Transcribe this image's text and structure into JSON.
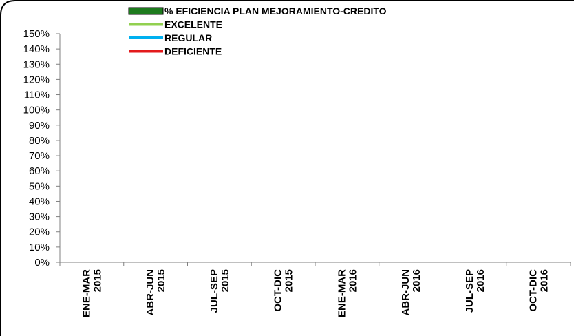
{
  "chart_data": {
    "type": "bar",
    "title": "",
    "xlabel": "",
    "ylabel": "",
    "ylim": [
      0,
      1.5
    ],
    "y_format": "percent",
    "y_ticks": [
      "0%",
      "10%",
      "20%",
      "30%",
      "40%",
      "50%",
      "60%",
      "70%",
      "80%",
      "90%",
      "100%",
      "110%",
      "120%",
      "130%",
      "140%",
      "150%"
    ],
    "categories": [
      [
        "ENE-MAR",
        "2015"
      ],
      [
        "ABR-JUN",
        "2015"
      ],
      [
        "JUL-SEP",
        "2015"
      ],
      [
        "OCT-DIC",
        "2015"
      ],
      [
        "ENE-MAR",
        "2016"
      ],
      [
        "ABR-JUN",
        "2016"
      ],
      [
        "JUL-SEP",
        "2016"
      ],
      [
        "OCT-DIC",
        "2016"
      ]
    ],
    "series": [
      {
        "name": "% EFICIENCIA PLAN MEJORAMIENTO-CREDITO",
        "kind": "bar",
        "color": "#1e7b1e",
        "values": [
          null,
          null,
          null,
          null,
          null,
          null,
          null,
          null
        ]
      },
      {
        "name": "EXCELENTE",
        "kind": "line",
        "color": "#92d050",
        "values": [
          null,
          null,
          null,
          null,
          null,
          null,
          null,
          null
        ]
      },
      {
        "name": "REGULAR",
        "kind": "line",
        "color": "#00b0f0",
        "values": [
          null,
          null,
          null,
          null,
          null,
          null,
          null,
          null
        ]
      },
      {
        "name": "DEFICIENTE",
        "kind": "line",
        "color": "#e31a1c",
        "values": [
          null,
          null,
          null,
          null,
          null,
          null,
          null,
          null
        ]
      }
    ],
    "legend_position": "top-left",
    "grid": false
  }
}
